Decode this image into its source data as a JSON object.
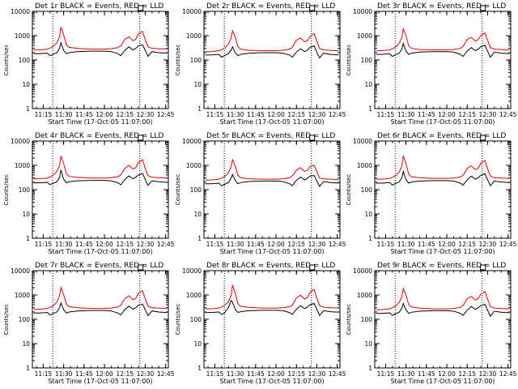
{
  "chart_data": {
    "type": "line",
    "layout": "3x3 grid",
    "xlabel": "Start Time (17-Oct-05 11:07:00)",
    "ylabel": "Counts/sec",
    "x_ticks": [
      "11:15",
      "11:30",
      "11:45",
      "12:00",
      "12:15",
      "12:30",
      "12:45"
    ],
    "y_ticks": [
      "1",
      "10",
      "100",
      "1000",
      "10000"
    ],
    "y_scale": "log",
    "ylim": [
      1,
      10000
    ],
    "xlim": [
      "11:07",
      "12:47"
    ],
    "reference_lines": [
      "11:22",
      "12:26"
    ],
    "colors": {
      "events": "#000000",
      "lld": "#e00000"
    },
    "x": [
      "11:08",
      "11:12",
      "11:18",
      "11:20",
      "11:22",
      "11:25",
      "11:27",
      "11:28",
      "11:30",
      "11:32",
      "11:34",
      "11:40",
      "11:50",
      "12:00",
      "12:05",
      "12:10",
      "12:12",
      "12:15",
      "12:18",
      "12:21",
      "12:23",
      "12:25",
      "12:28",
      "12:30",
      "12:32",
      "12:35",
      "12:40",
      "12:46"
    ],
    "panels": [
      {
        "title": "Det 1r BLACK = Events, RED = LLD",
        "lld": [
          260,
          260,
          280,
          310,
          350,
          500,
          900,
          2200,
          1100,
          420,
          330,
          300,
          280,
          280,
          290,
          320,
          380,
          700,
          900,
          620,
          700,
          1200,
          1500,
          700,
          350,
          300,
          290,
          280
        ],
        "events": [
          180,
          180,
          190,
          150,
          170,
          200,
          300,
          500,
          250,
          180,
          200,
          220,
          230,
          230,
          220,
          180,
          150,
          250,
          350,
          260,
          300,
          380,
          420,
          250,
          140,
          220,
          200,
          190
        ]
      },
      {
        "title": "Det 2r BLACK = Events, RED = LLD",
        "lld": [
          220,
          220,
          240,
          270,
          300,
          450,
          800,
          1600,
          900,
          350,
          280,
          250,
          240,
          240,
          250,
          280,
          330,
          650,
          800,
          560,
          620,
          900,
          1200,
          600,
          300,
          260,
          250,
          240
        ],
        "events": [
          160,
          160,
          170,
          130,
          150,
          180,
          260,
          350,
          200,
          150,
          170,
          190,
          200,
          200,
          190,
          160,
          130,
          210,
          290,
          220,
          250,
          330,
          380,
          210,
          120,
          190,
          170,
          160
        ]
      },
      {
        "title": "Det 3r BLACK = Events, RED = LLD",
        "lld": [
          240,
          240,
          260,
          290,
          330,
          480,
          850,
          1900,
          1000,
          380,
          300,
          270,
          260,
          260,
          270,
          300,
          360,
          700,
          850,
          600,
          680,
          1000,
          1300,
          650,
          320,
          280,
          270,
          260
        ],
        "events": [
          170,
          170,
          180,
          140,
          160,
          190,
          280,
          480,
          230,
          170,
          190,
          210,
          220,
          220,
          210,
          170,
          140,
          230,
          320,
          240,
          280,
          350,
          400,
          230,
          130,
          210,
          190,
          180
        ]
      },
      {
        "title": "Det 4r BLACK = Events, RED = LLD",
        "lld": [
          280,
          280,
          300,
          330,
          380,
          550,
          1000,
          2400,
          1200,
          450,
          350,
          320,
          300,
          300,
          310,
          340,
          400,
          750,
          1000,
          700,
          800,
          1300,
          1700,
          750,
          380,
          320,
          310,
          300
        ],
        "events": [
          190,
          190,
          200,
          160,
          180,
          210,
          320,
          650,
          270,
          190,
          210,
          230,
          240,
          240,
          230,
          190,
          160,
          260,
          370,
          280,
          320,
          400,
          460,
          270,
          150,
          230,
          210,
          200
        ]
      },
      {
        "title": "Det 5r BLACK = Events, RED = LLD",
        "lld": [
          250,
          250,
          270,
          300,
          340,
          490,
          870,
          1700,
          950,
          390,
          310,
          280,
          270,
          270,
          280,
          310,
          370,
          620,
          800,
          560,
          620,
          900,
          1000,
          560,
          300,
          280,
          270,
          260
        ],
        "events": [
          175,
          175,
          185,
          145,
          165,
          195,
          290,
          420,
          240,
          175,
          195,
          215,
          225,
          225,
          215,
          175,
          145,
          240,
          330,
          250,
          290,
          360,
          380,
          230,
          135,
          215,
          195,
          185
        ]
      },
      {
        "title": "Det 6r BLACK = Events, RED = LLD",
        "lld": [
          270,
          270,
          290,
          320,
          360,
          520,
          950,
          2500,
          1150,
          430,
          340,
          310,
          290,
          290,
          300,
          330,
          390,
          740,
          950,
          660,
          760,
          1200,
          1600,
          720,
          360,
          310,
          300,
          290
        ],
        "events": [
          185,
          185,
          195,
          155,
          175,
          205,
          310,
          560,
          260,
          185,
          205,
          225,
          235,
          235,
          225,
          185,
          155,
          255,
          360,
          270,
          310,
          390,
          450,
          260,
          145,
          225,
          205,
          195
        ]
      },
      {
        "title": "Det 7r BLACK = Events, RED = LLD",
        "lld": [
          260,
          260,
          280,
          310,
          350,
          500,
          900,
          2000,
          1050,
          420,
          330,
          300,
          280,
          280,
          290,
          320,
          380,
          700,
          920,
          640,
          720,
          1150,
          1500,
          700,
          350,
          300,
          290,
          280
        ],
        "events": [
          180,
          180,
          190,
          150,
          170,
          200,
          300,
          470,
          250,
          180,
          200,
          220,
          230,
          230,
          220,
          180,
          150,
          250,
          350,
          260,
          300,
          380,
          420,
          250,
          140,
          220,
          200,
          190
        ]
      },
      {
        "title": "Det 8r BLACK = Events, RED = LLD",
        "lld": [
          270,
          270,
          290,
          320,
          370,
          530,
          950,
          2600,
          1200,
          440,
          340,
          310,
          290,
          290,
          300,
          330,
          390,
          750,
          980,
          680,
          780,
          1250,
          1700,
          740,
          370,
          310,
          300,
          290
        ],
        "events": [
          190,
          190,
          200,
          160,
          180,
          300,
          600,
          500,
          260,
          190,
          205,
          225,
          235,
          235,
          225,
          190,
          160,
          260,
          360,
          275,
          315,
          395,
          450,
          265,
          145,
          225,
          205,
          195
        ]
      },
      {
        "title": "Det 9r BLACK = Events, RED = LLD",
        "lld": [
          250,
          250,
          270,
          300,
          340,
          490,
          880,
          1850,
          1000,
          400,
          320,
          290,
          270,
          270,
          280,
          310,
          370,
          700,
          880,
          620,
          700,
          1100,
          1400,
          680,
          340,
          290,
          280,
          270
        ],
        "events": [
          175,
          175,
          185,
          145,
          165,
          195,
          290,
          450,
          240,
          175,
          195,
          215,
          225,
          225,
          215,
          175,
          145,
          240,
          340,
          255,
          295,
          370,
          410,
          240,
          135,
          215,
          195,
          185
        ]
      }
    ]
  }
}
